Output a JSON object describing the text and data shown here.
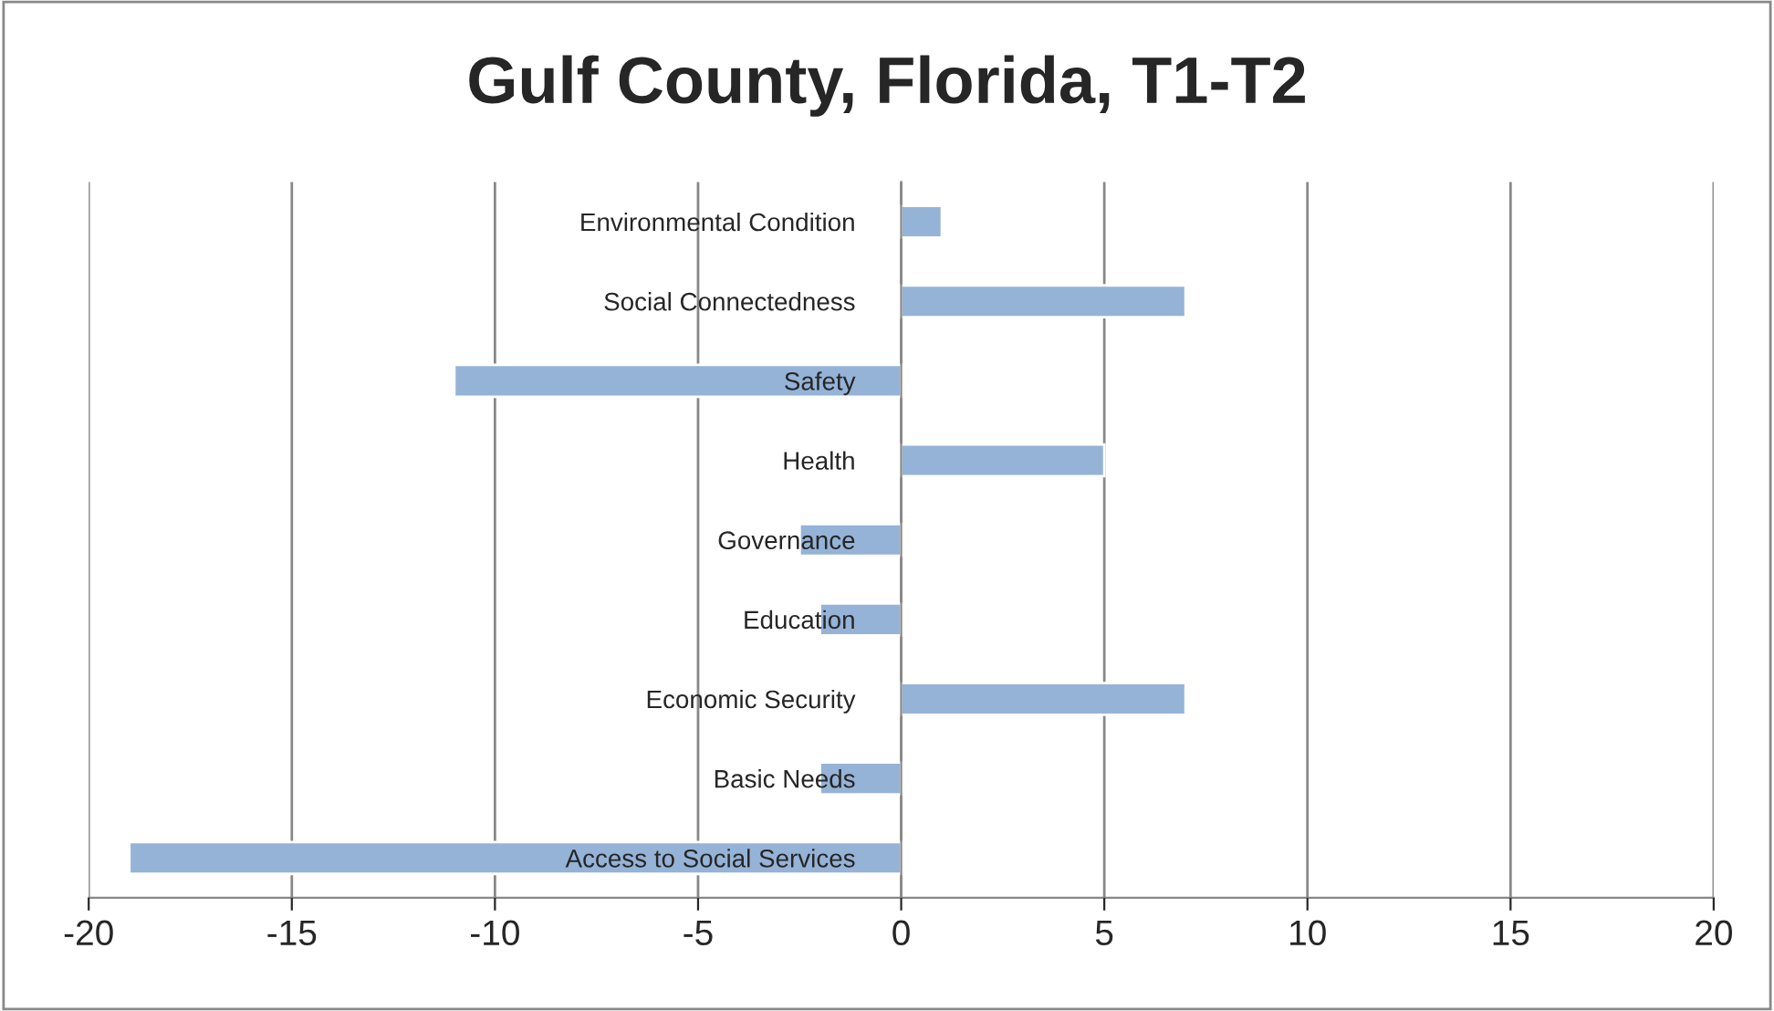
{
  "chart_data": {
    "type": "bar",
    "orientation": "horizontal",
    "title": "Gulf County, Florida, T1-T2",
    "categories": [
      "Environmental Condition",
      "Social Connectedness",
      "Safety",
      "Health",
      "Governance",
      "Education",
      "Economic Security",
      "Basic Needs",
      "Access to Social Services"
    ],
    "values": [
      1,
      7,
      -11,
      5,
      -2.5,
      -2,
      7,
      -2,
      -19
    ],
    "color": "#95b3d7",
    "xlim": [
      -20,
      20
    ],
    "xticks": [
      -20,
      -15,
      -10,
      -5,
      0,
      5,
      10,
      15,
      20
    ],
    "grid": "x"
  }
}
